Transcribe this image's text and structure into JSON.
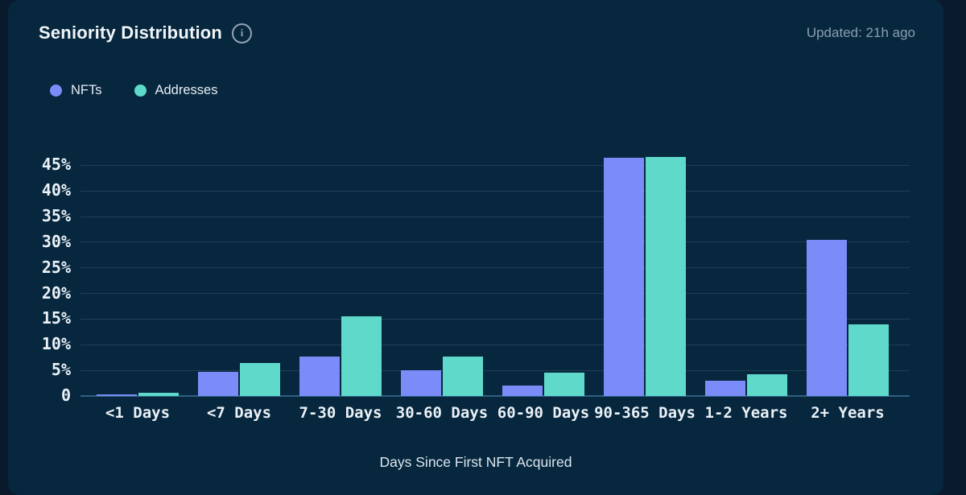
{
  "header": {
    "title": "Seniority Distribution",
    "updated": "Updated: 21h ago"
  },
  "legend": [
    {
      "label": "NFTs",
      "color": "#7b8cf8"
    },
    {
      "label": "Addresses",
      "color": "#5fd9c9"
    }
  ],
  "chart_data": {
    "type": "bar",
    "categories": [
      "<1 Days",
      "<7 Days",
      "7-30 Days",
      "30-60 Days",
      "60-90 Days",
      "90-365 Days",
      "1-2 Years",
      "2+ Years"
    ],
    "series": [
      {
        "name": "NFTs",
        "color": "#7b8cf8",
        "values": [
          0.3,
          4.7,
          7.7,
          5.0,
          2.0,
          46.4,
          3.0,
          30.4
        ]
      },
      {
        "name": "Addresses",
        "color": "#5fd9c9",
        "values": [
          0.6,
          6.5,
          15.5,
          7.7,
          4.5,
          46.6,
          4.2,
          14.0
        ]
      }
    ],
    "title": "Seniority Distribution",
    "xlabel": "Days Since First NFT Acquired",
    "ylabel": "",
    "y_ticks": [
      "0",
      "5%",
      "10%",
      "15%",
      "20%",
      "25%",
      "30%",
      "35%",
      "40%",
      "45%"
    ],
    "y_tick_values": [
      0,
      5,
      10,
      15,
      20,
      25,
      30,
      35,
      40,
      45
    ],
    "ylim": [
      0,
      47.4
    ],
    "grid": true,
    "legend_position": "top-left",
    "colors": {
      "background": "#06273e",
      "page": "#0a1a2d",
      "gridline": "rgba(163,191,217,0.16)"
    }
  }
}
